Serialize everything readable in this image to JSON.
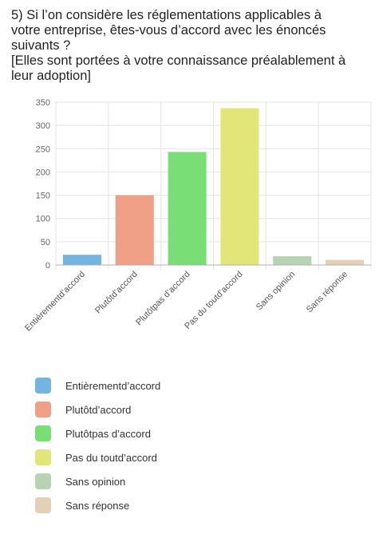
{
  "question": {
    "lines": [
      "5) Si l’on considère les réglementations applicables à",
      "votre entreprise, êtes-vous d’accord avec les énoncés",
      "suivants ?",
      "[Elles sont portées à votre connaissance préalablement à",
      "leur adoption]"
    ]
  },
  "chart_data": {
    "type": "bar",
    "categories": [
      "Entièrementd’accord",
      "Plutôtd’accord",
      "Plutôtpas d’accord",
      "Pas du toutd’accord",
      "Sans opinion",
      "Sans réponse"
    ],
    "values": [
      22,
      150,
      243,
      337,
      19,
      11
    ],
    "colors": [
      "#74b4e0",
      "#f0a086",
      "#7ade76",
      "#e2e577",
      "#b7d3b1",
      "#e3d0b5"
    ],
    "ylim": [
      0,
      350
    ],
    "yticks": [
      0,
      50,
      100,
      150,
      200,
      250,
      300,
      350
    ],
    "grid": true,
    "legend": "bottom"
  }
}
